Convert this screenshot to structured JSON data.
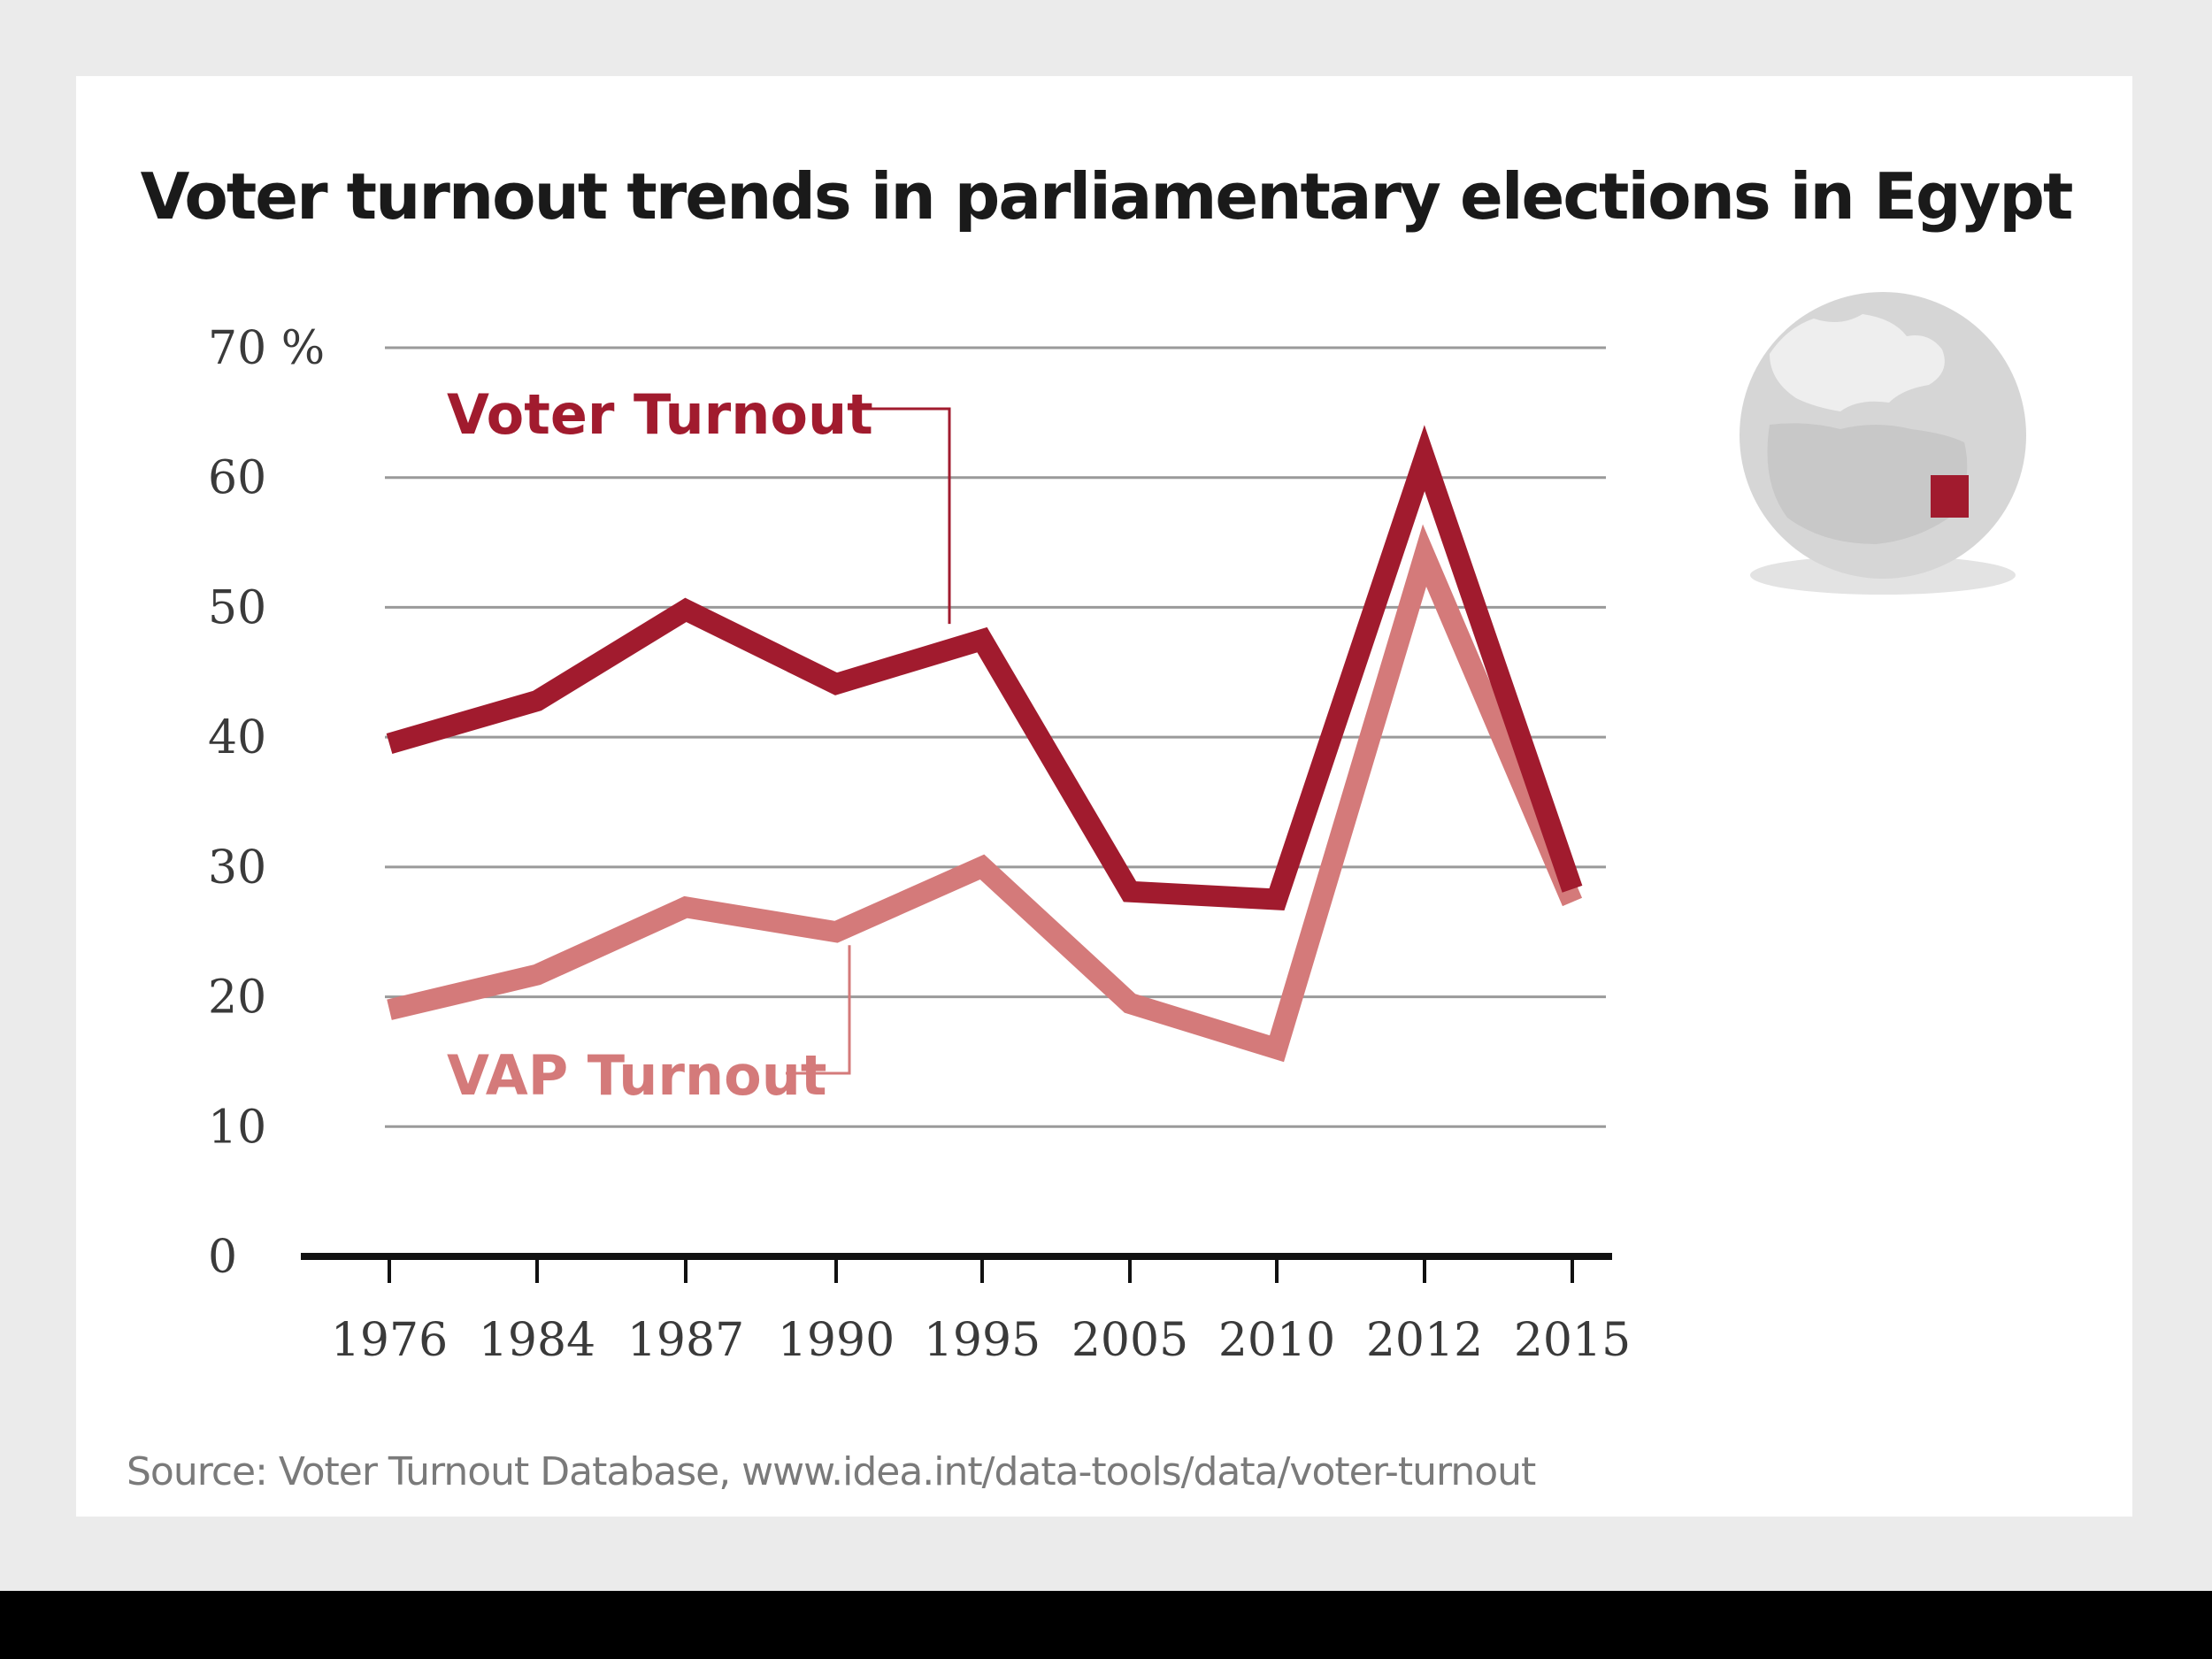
{
  "title": "Voter turnout trends in parliamentary elections in Egypt",
  "source": "Source: Voter Turnout Database, www.idea.int/data-tools/data/voter-turnout",
  "colors": {
    "background": "#ebebeb",
    "card": "#ffffff",
    "voter_turnout": "#a11b2e",
    "vap_turnout": "#d47a7a",
    "grid": "#9a9a9a",
    "globe": "#d6d6d6",
    "highlight_country": "#a11b2e"
  },
  "icons": {
    "globe": "globe-icon"
  },
  "chart_data": {
    "type": "line",
    "categories": [
      "1976",
      "1984",
      "1987",
      "1990",
      "1995",
      "2005",
      "2010",
      "2012",
      "2015"
    ],
    "y_tick_labels": [
      "70 %",
      "60",
      "50",
      "40",
      "30",
      "20",
      "10",
      "0"
    ],
    "ylim": [
      0,
      70
    ],
    "grid": true,
    "legend": "inline-labels",
    "series": [
      {
        "name": "Voter Turnout",
        "values": [
          39.5,
          42.8,
          49.8,
          44.1,
          47.5,
          28.1,
          27.5,
          61.5,
          28.3
        ]
      },
      {
        "name": "VAP Turnout",
        "values": [
          19.0,
          21.7,
          26.9,
          25.0,
          30.0,
          19.5,
          16.0,
          54.0,
          27.3
        ]
      }
    ]
  }
}
